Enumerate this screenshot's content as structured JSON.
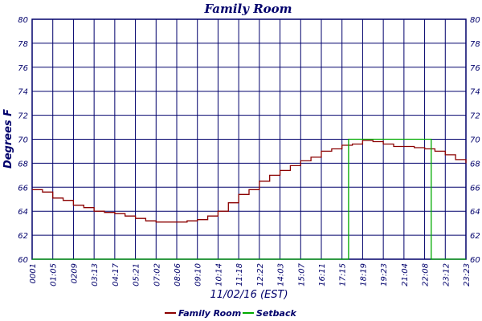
{
  "chart_data": {
    "type": "line",
    "title": "Family Room",
    "xlabel": "11/02/16 (EST)",
    "ylabel": "Degrees F",
    "ylim": [
      60,
      80
    ],
    "yticks": [
      60,
      62,
      64,
      66,
      68,
      70,
      72,
      74,
      76,
      78,
      80
    ],
    "x_tick_labels": [
      "0001",
      "01:05",
      "0209",
      "03:13",
      "04:17",
      "05:21",
      "07:02",
      "08:06",
      "09:10",
      "10:14",
      "11:18",
      "12:22",
      "14:03",
      "15:07",
      "16:11",
      "17:15",
      "18:19",
      "19:23",
      "21:04",
      "22:08",
      "23:12",
      "23:23"
    ],
    "grid": true,
    "legend_position": "bottom-center",
    "colors": {
      "background": "#ffffff",
      "grid": "#00006b",
      "text": "#00006b",
      "family_room": "#8b0000",
      "setback": "#00aa00"
    },
    "series": [
      {
        "name": "Family Room",
        "color": "#8b0000",
        "x": [
          0,
          0.5,
          1,
          1.5,
          2,
          2.5,
          3,
          3.5,
          4,
          4.5,
          5,
          5.5,
          6,
          6.5,
          7,
          7.5,
          8,
          8.5,
          9,
          9.5,
          10,
          10.5,
          11,
          11.5,
          12,
          12.5,
          13,
          13.5,
          14,
          14.5,
          15,
          15.5,
          16,
          16.5,
          17,
          17.5,
          18,
          18.5,
          19,
          19.5,
          20,
          20.5,
          21,
          21
        ],
        "values": [
          65.8,
          65.6,
          65.1,
          64.9,
          64.5,
          64.3,
          64.0,
          63.9,
          63.8,
          63.6,
          63.4,
          63.2,
          63.1,
          63.1,
          63.1,
          63.2,
          63.3,
          63.6,
          64.0,
          64.7,
          65.4,
          65.8,
          66.5,
          67.0,
          67.4,
          67.8,
          68.2,
          68.5,
          69.0,
          69.2,
          69.5,
          69.6,
          69.9,
          69.8,
          69.6,
          69.4,
          69.4,
          69.3,
          69.2,
          69.0,
          68.7,
          68.3,
          68.2,
          68.0
        ]
      },
      {
        "name": "Setback",
        "color": "#00aa00",
        "x": [
          0,
          15.3,
          15.32,
          19.3,
          19.32,
          21
        ],
        "values": [
          60,
          60,
          70,
          70,
          60,
          60
        ]
      }
    ],
    "legend": [
      "Family Room",
      "Setback"
    ]
  }
}
